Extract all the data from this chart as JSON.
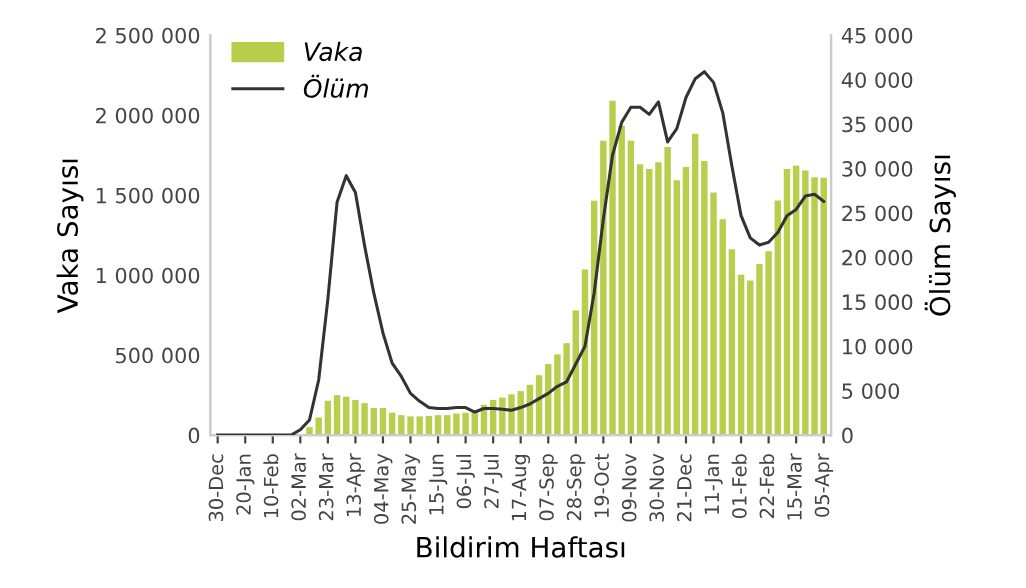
{
  "chart_data": {
    "type": "bar",
    "xlabel": "Bildirim Haftası",
    "ylabel": "Vaka Sayısı",
    "y2label": "Ölüm Sayısı",
    "categories": [
      "30-Dec",
      null,
      null,
      "20-Jan",
      null,
      null,
      "10-Feb",
      null,
      null,
      "02-Mar",
      null,
      null,
      "23-Mar",
      null,
      null,
      "13-Apr",
      null,
      null,
      "04-May",
      null,
      null,
      "25-May",
      null,
      null,
      "15-Jun",
      null,
      null,
      "06-Jul",
      null,
      null,
      "27-Jul",
      null,
      null,
      "17-Aug",
      null,
      null,
      "07-Sep",
      null,
      null,
      "28-Sep",
      null,
      null,
      "19-Oct",
      null,
      null,
      "09-Nov",
      null,
      null,
      "30-Nov",
      null,
      null,
      "21-Dec",
      null,
      null,
      "11-Jan",
      null,
      null,
      "01-Feb",
      null,
      null,
      "22-Feb",
      null,
      null,
      "15-Mar",
      null,
      null,
      "05-Apr"
    ],
    "series": [
      {
        "name": "Vaka",
        "color": "#b8cf4e",
        "values": [
          0,
          0,
          0,
          0,
          0,
          0,
          0,
          0,
          0,
          0,
          50000,
          110000,
          215000,
          250000,
          240000,
          220000,
          200000,
          170000,
          170000,
          140000,
          125000,
          117000,
          117000,
          120000,
          125000,
          125000,
          135000,
          140000,
          150000,
          190000,
          220000,
          235000,
          255000,
          275000,
          315000,
          375000,
          445000,
          505000,
          575000,
          780000,
          1035000,
          1465000,
          1840000,
          2090000,
          1935000,
          1840000,
          1693000,
          1664000,
          1706000,
          1802000,
          1593000,
          1676000,
          1885000,
          1714000,
          1517000,
          1350000,
          1162000,
          1003000,
          966000,
          1070000,
          1150000,
          1467000,
          1664000,
          1685000,
          1655000,
          1613000,
          1609000
        ]
      },
      {
        "name": "Ölüm",
        "type": "line",
        "axis": "y2",
        "color": "#333333",
        "values": [
          0,
          0,
          0,
          0,
          0,
          0,
          0,
          0,
          0,
          600,
          1700,
          6200,
          15300,
          26200,
          29200,
          27300,
          21300,
          16000,
          11500,
          8100,
          6600,
          4700,
          3800,
          3100,
          3000,
          3000,
          3100,
          3100,
          2600,
          3000,
          3000,
          2900,
          2800,
          3100,
          3500,
          4100,
          4700,
          5500,
          6000,
          8000,
          10000,
          16000,
          24300,
          31500,
          35200,
          36900,
          36900,
          36100,
          37500,
          33000,
          34500,
          38000,
          40100,
          40900,
          39700,
          36300,
          30300,
          24700,
          22200,
          21400,
          21700,
          22800,
          24700,
          25400,
          26900,
          27100,
          26300
        ]
      }
    ],
    "ylim": [
      0,
      2500000
    ],
    "yticks": [
      {
        "value": 0,
        "label": "0"
      },
      {
        "value": 500000,
        "label": "500 000"
      },
      {
        "value": 1000000,
        "label": "1 000 000"
      },
      {
        "value": 1500000,
        "label": "1 500 000"
      },
      {
        "value": 2000000,
        "label": "2 000 000"
      },
      {
        "value": 2500000,
        "label": "2 500 000"
      }
    ],
    "y2lim": [
      0,
      45000
    ],
    "y2ticks": [
      {
        "value": 0,
        "label": "0"
      },
      {
        "value": 5000,
        "label": "5 000"
      },
      {
        "value": 10000,
        "label": "10 000"
      },
      {
        "value": 15000,
        "label": "15 000"
      },
      {
        "value": 20000,
        "label": "20 000"
      },
      {
        "value": 25000,
        "label": "25 000"
      },
      {
        "value": 30000,
        "label": "30 000"
      },
      {
        "value": 35000,
        "label": "35 000"
      },
      {
        "value": 40000,
        "label": "40 000"
      },
      {
        "value": 45000,
        "label": "45 000"
      }
    ],
    "legend": "top left",
    "grid": false
  }
}
